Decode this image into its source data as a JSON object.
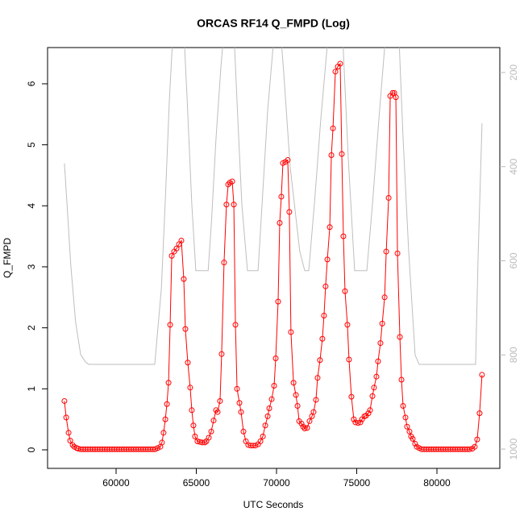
{
  "chart_data": {
    "type": "line",
    "title": "ORCAS RF14 Q_FMPD (Log)",
    "x_label": "UTC Seconds",
    "y_label": "Q_FMPD",
    "xlim": [
      55729,
      83920
    ],
    "xticks": [
      60000,
      65000,
      70000,
      75000,
      80000
    ],
    "ylim": [
      -0.304,
      6.594
    ],
    "yticks": [
      0,
      1,
      2,
      3,
      4,
      5,
      6
    ],
    "y2lim": [
      1041,
      147
    ],
    "y2ticks": [
      200,
      400,
      600,
      800,
      1000
    ],
    "series": [
      {
        "color": "#ff0000",
        "markers": true,
        "x": [
          56780,
          56890,
          57040,
          57140,
          57290,
          57390,
          57540,
          57640,
          57790,
          57940,
          58090,
          58240,
          58390,
          58540,
          58690,
          58840,
          58990,
          59140,
          59290,
          59440,
          59590,
          59740,
          59890,
          60040,
          60190,
          60340,
          60490,
          60640,
          60790,
          60940,
          61090,
          61240,
          61390,
          61540,
          61690,
          61840,
          61990,
          62140,
          62290,
          62440,
          62590,
          62760,
          62860,
          62960,
          63070,
          63170,
          63270,
          63370,
          63470,
          63620,
          63770,
          63920,
          64070,
          64220,
          64320,
          64470,
          64620,
          64720,
          64820,
          64920,
          65070,
          65220,
          65370,
          65530,
          65630,
          65780,
          65930,
          66080,
          66230,
          66330,
          66480,
          66580,
          66730,
          66880,
          66990,
          67090,
          67240,
          67340,
          67440,
          67540,
          67690,
          67790,
          67940,
          68090,
          68240,
          68390,
          68540,
          68690,
          68850,
          69000,
          69150,
          69300,
          69450,
          69550,
          69700,
          69850,
          69950,
          70100,
          70200,
          70300,
          70400,
          70550,
          70700,
          70800,
          70900,
          71060,
          71210,
          71310,
          71410,
          71560,
          71660,
          71760,
          71910,
          72060,
          72210,
          72310,
          72460,
          72560,
          72710,
          72860,
          72960,
          73060,
          73170,
          73320,
          73420,
          73520,
          73670,
          73820,
          73970,
          74070,
          74170,
          74270,
          74420,
          74520,
          74670,
          74820,
          74920,
          75080,
          75230,
          75330,
          75480,
          75580,
          75730,
          75830,
          75980,
          76080,
          76230,
          76330,
          76480,
          76590,
          76740,
          76840,
          76990,
          77090,
          77240,
          77340,
          77440,
          77540,
          77690,
          77790,
          77890,
          78040,
          78140,
          78290,
          78390,
          78490,
          78640,
          78740,
          78890,
          79040,
          79190,
          79340,
          79490,
          79640,
          79790,
          79940,
          80090,
          80240,
          80390,
          80540,
          80690,
          80840,
          80990,
          81140,
          81290,
          81440,
          81590,
          81740,
          81890,
          82040,
          82210,
          82360,
          82510,
          82660,
          82810
        ],
        "values": [
          0.8,
          0.53,
          0.28,
          0.15,
          0.08,
          0.05,
          0.03,
          0.02,
          0.01,
          0.01,
          0.01,
          0.01,
          0.01,
          0.01,
          0.01,
          0.01,
          0.01,
          0.01,
          0.01,
          0.01,
          0.01,
          0.01,
          0.01,
          0.01,
          0.01,
          0.01,
          0.01,
          0.01,
          0.01,
          0.01,
          0.01,
          0.01,
          0.01,
          0.01,
          0.01,
          0.01,
          0.01,
          0.01,
          0.01,
          0.01,
          0.03,
          0.05,
          0.12,
          0.28,
          0.5,
          0.75,
          1.1,
          2.05,
          3.18,
          3.25,
          3.3,
          3.37,
          3.43,
          2.8,
          1.98,
          1.43,
          1.02,
          0.65,
          0.4,
          0.22,
          0.14,
          0.13,
          0.12,
          0.12,
          0.14,
          0.2,
          0.3,
          0.48,
          0.65,
          0.62,
          0.8,
          1.57,
          3.07,
          4.02,
          4.35,
          4.38,
          4.4,
          4.02,
          2.05,
          1.0,
          0.77,
          0.62,
          0.3,
          0.14,
          0.08,
          0.07,
          0.07,
          0.07,
          0.09,
          0.14,
          0.22,
          0.4,
          0.55,
          0.68,
          0.83,
          1.05,
          1.5,
          2.43,
          3.72,
          4.15,
          4.7,
          4.72,
          4.75,
          3.9,
          1.93,
          1.1,
          0.9,
          0.72,
          0.47,
          0.43,
          0.38,
          0.35,
          0.36,
          0.47,
          0.55,
          0.62,
          0.82,
          1.18,
          1.47,
          1.82,
          2.2,
          2.68,
          3.12,
          3.65,
          4.83,
          5.27,
          6.2,
          6.28,
          6.33,
          4.85,
          3.5,
          2.6,
          2.05,
          1.48,
          0.87,
          0.5,
          0.45,
          0.44,
          0.45,
          0.5,
          0.55,
          0.56,
          0.6,
          0.65,
          0.88,
          1.02,
          1.2,
          1.45,
          1.75,
          2.07,
          2.5,
          3.25,
          4.13,
          5.8,
          5.85,
          5.85,
          5.78,
          3.22,
          1.85,
          1.15,
          0.72,
          0.53,
          0.38,
          0.3,
          0.22,
          0.18,
          0.1,
          0.05,
          0.03,
          0.01,
          0.01,
          0.01,
          0.01,
          0.01,
          0.01,
          0.01,
          0.01,
          0.01,
          0.01,
          0.01,
          0.01,
          0.01,
          0.01,
          0.01,
          0.01,
          0.01,
          0.01,
          0.01,
          0.01,
          0.01,
          0.02,
          0.05,
          0.17,
          0.6,
          1.23
        ]
      },
      {
        "color": "#bebebe",
        "axis": "y2",
        "x": [
          56780,
          56980,
          57180,
          57480,
          57790,
          58090,
          58290,
          62410,
          62820,
          63070,
          63320,
          63570,
          64220,
          64420,
          64720,
          64970,
          65740,
          65940,
          66230,
          66530,
          66730,
          67340,
          67590,
          67840,
          68190,
          68850,
          69100,
          69450,
          69850,
          70250,
          70450,
          70850,
          71450,
          71760,
          72010,
          72360,
          72760,
          73220,
          74120,
          74470,
          74870,
          75630,
          75980,
          76380,
          76780,
          77640,
          77890,
          78240,
          78640,
          78890,
          82410,
          82560,
          82810
        ],
        "values": [
          393,
          500,
          611,
          731,
          799,
          815,
          820,
          820,
          660,
          470,
          260,
          100,
          110,
          250,
          480,
          621,
          621,
          520,
          340,
          190,
          110,
          110,
          300,
          480,
          621,
          621,
          480,
          280,
          120,
          110,
          200,
          400,
          580,
          621,
          621,
          480,
          300,
          120,
          120,
          380,
          621,
          621,
          480,
          300,
          130,
          130,
          340,
          580,
          800,
          820,
          820,
          600,
          308
        ]
      }
    ]
  }
}
